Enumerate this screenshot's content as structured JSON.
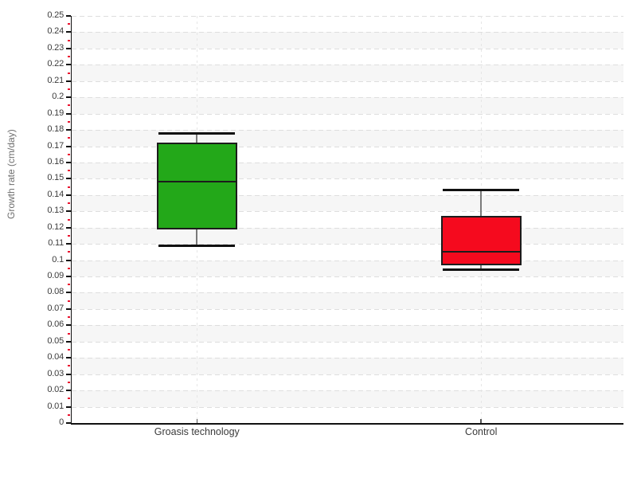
{
  "page": {
    "background": "#ffffff"
  },
  "chart_data": {
    "type": "box",
    "title": "",
    "xlabel": "",
    "ylabel": "Growth rate (cm/day)",
    "ylim": [
      0,
      0.25
    ],
    "y_major_step": 0.01,
    "y_minor_step": 0.005,
    "y_tick_labels": [
      "0",
      "0.01",
      "0.02",
      "0.03",
      "0.04",
      "0.05",
      "0.06",
      "0.07",
      "0.08",
      "0.09",
      "0.1",
      "0.11",
      "0.12",
      "0.13",
      "0.14",
      "0.15",
      "0.16",
      "0.17",
      "0.18",
      "0.19",
      "0.2",
      "0.21",
      "0.22",
      "0.23",
      "0.24",
      "0.25"
    ],
    "categories": [
      "Groasis technology",
      "Control"
    ],
    "series": [
      {
        "name": "Groasis technology",
        "x_frac": 0.227,
        "min": 0.109,
        "q1": 0.119,
        "median": 0.148,
        "q3": 0.172,
        "max": 0.178,
        "color": "#23a819"
      },
      {
        "name": "Control",
        "x_frac": 0.742,
        "min": 0.094,
        "q1": 0.097,
        "median": 0.105,
        "q3": 0.127,
        "max": 0.143,
        "color": "#f50a1e"
      }
    ],
    "legend": "none",
    "grid": {
      "horizontal": "dashed line at every 0.01",
      "vertical": "dashed line at each category center",
      "alternating_bands": "light gray bands on intervals 0.01-0.02, 0.03-0.04, ... 0.23-0.24"
    }
  },
  "style_colors": {
    "band": "#f6f6f6",
    "gridline": "#dedede",
    "vgridline": "#e6e6e6",
    "axis": "#111111",
    "major_tick": "#111111",
    "minor_tick": "#e8112d",
    "x_tick": "#555555",
    "tick_label": "#3a3a3a",
    "axis_title": "#6e6e6e",
    "whisker_line": "#7a7a7a",
    "whisker_cap": "#111111",
    "box_border": "#1c1c1c",
    "median": "#1c1c1c"
  }
}
